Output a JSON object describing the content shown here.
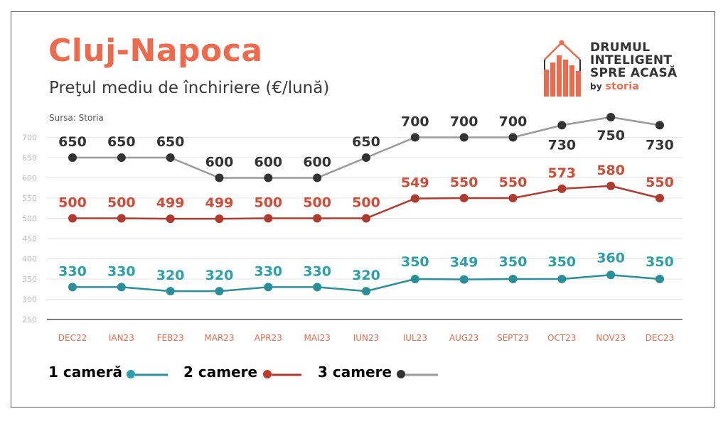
{
  "header": {
    "title": "Cluj-Napoca",
    "subtitle": "Preţul mediu de închiriere (€/lună)",
    "source": "Sursa: Storia"
  },
  "logo": {
    "line1": "DRUMUL",
    "line2": "INTELIGENT",
    "line3": "SPRE ACASĂ",
    "by": "by",
    "brand": "storia",
    "accent_color": "#ef6a4c"
  },
  "legend": {
    "items": [
      {
        "label": "1 cameră",
        "color": "#2aa0ad"
      },
      {
        "label": "2 camere",
        "color": "#c0392b"
      },
      {
        "label": "3 camere",
        "color": "#333333"
      }
    ]
  },
  "chart_data": {
    "type": "line",
    "categories": [
      "DEC22",
      "IAN23",
      "FEB23",
      "MAR23",
      "APR23",
      "MAI23",
      "IUN23",
      "IUL23",
      "AUG23",
      "SEPT23",
      "OCT23",
      "NOV23",
      "DEC23"
    ],
    "yticks": [
      250,
      300,
      350,
      400,
      450,
      500,
      550,
      600,
      650,
      700
    ],
    "ylim": [
      250,
      715
    ],
    "grid": true,
    "legend_position": "bottom-left",
    "series": [
      {
        "name": "1 cameră",
        "line_color": "#2b8f99",
        "marker_color": "#2b8f99",
        "label_color": "#2aa0ad",
        "values": [
          330,
          330,
          320,
          320,
          330,
          330,
          320,
          350,
          349,
          350,
          350,
          360,
          350
        ]
      },
      {
        "name": "2 camere",
        "line_color": "#b03a2e",
        "marker_color": "#b03a2e",
        "label_color": "#d44a35",
        "values": [
          500,
          500,
          499,
          499,
          500,
          500,
          500,
          549,
          550,
          550,
          573,
          580,
          550
        ]
      },
      {
        "name": "3 camere",
        "line_color": "#9a9a9a",
        "marker_color": "#333333",
        "label_color": "#333333",
        "values": [
          650,
          650,
          650,
          600,
          600,
          600,
          650,
          700,
          700,
          700,
          730,
          750,
          730
        ]
      }
    ]
  }
}
